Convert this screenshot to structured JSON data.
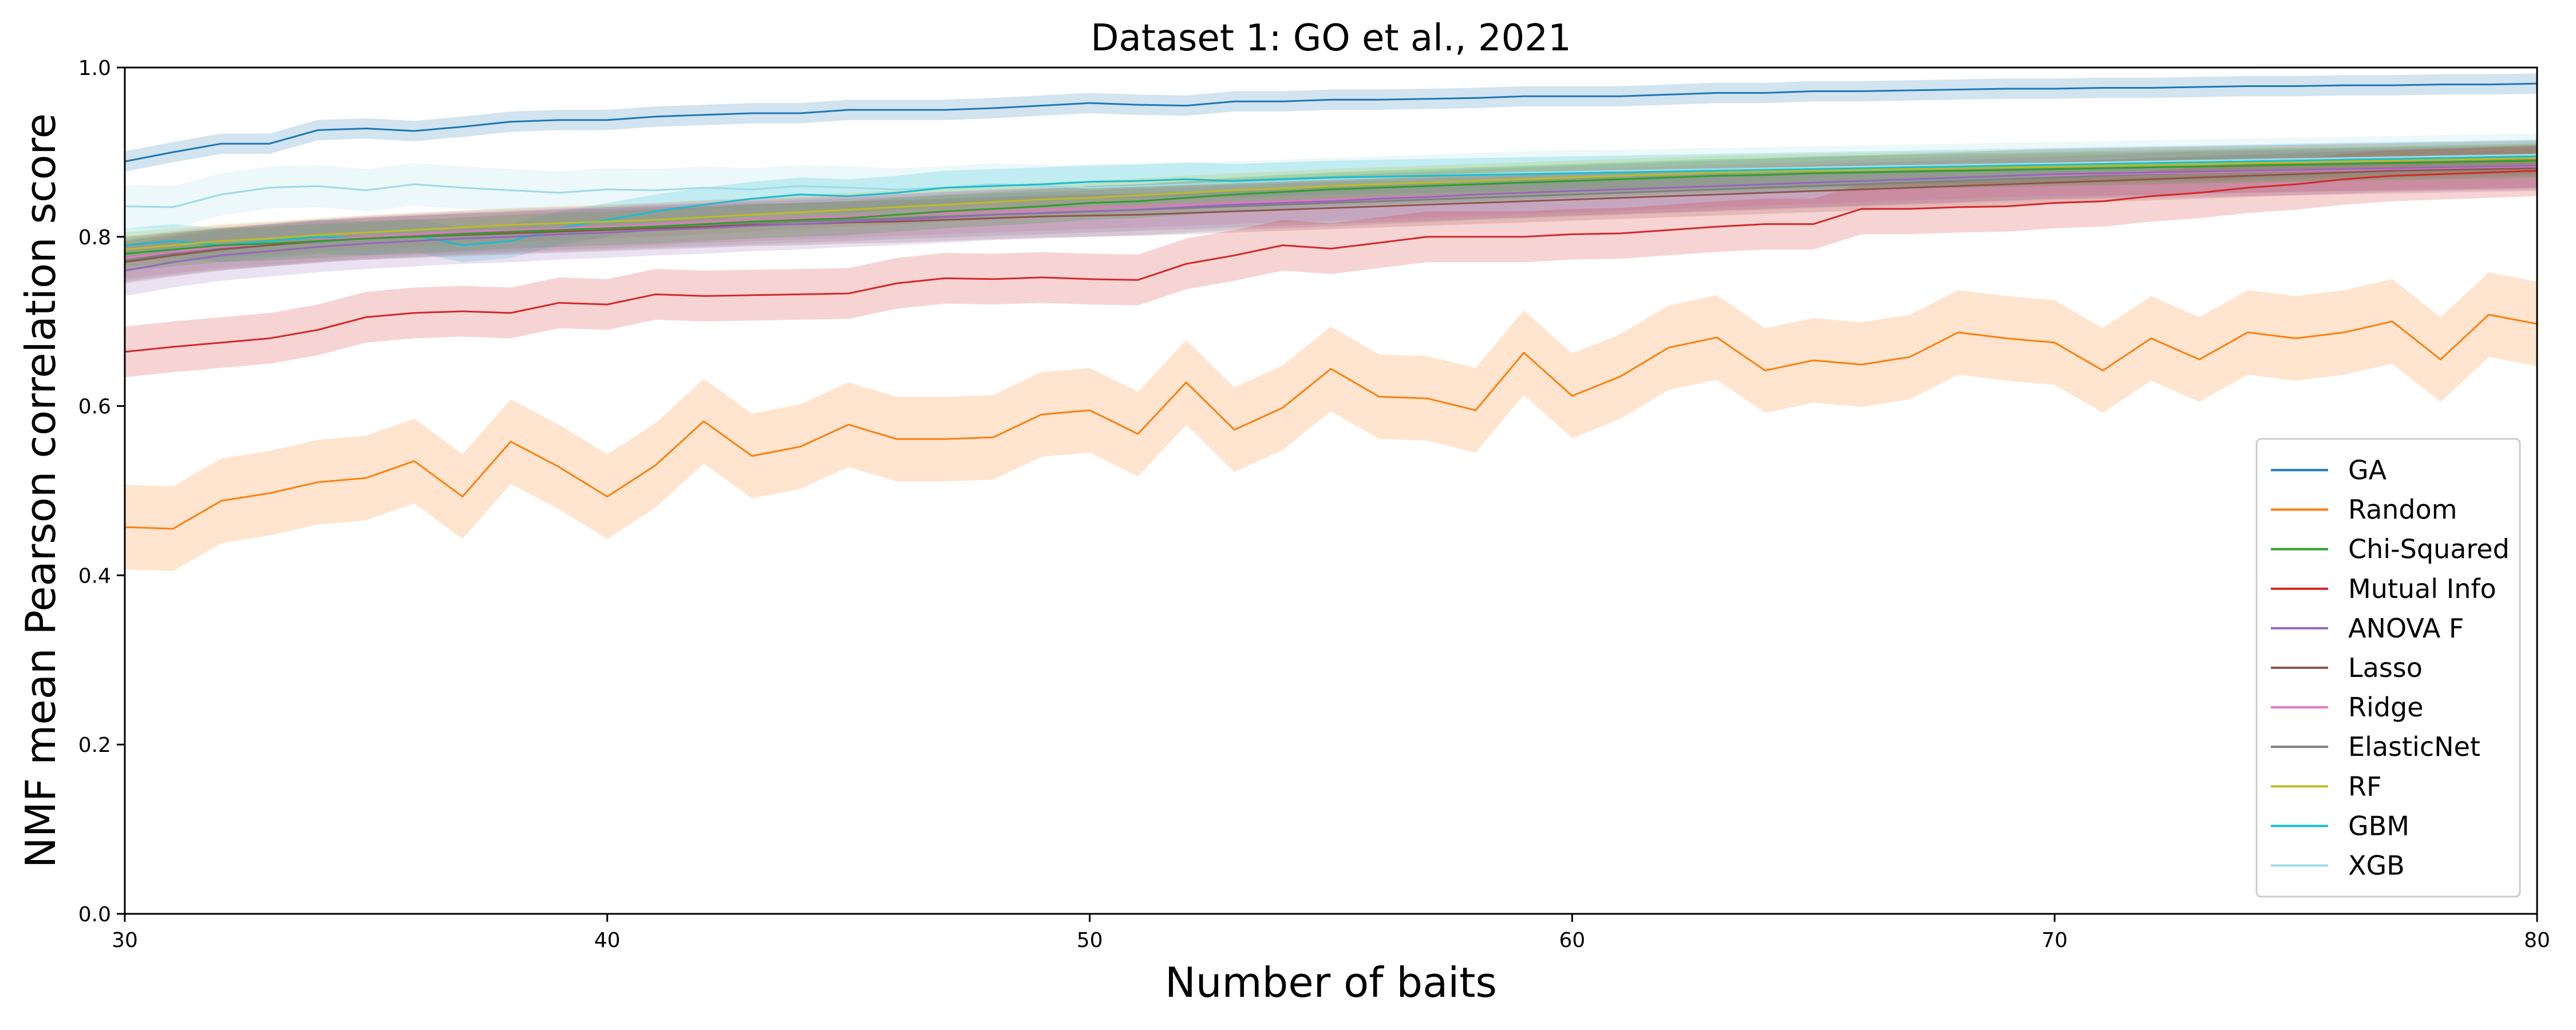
{
  "chart_data": {
    "type": "line",
    "title": "Dataset 1: GO et al., 2021",
    "xlabel": "Number of baits",
    "ylabel": "NMF mean Pearson correlation score",
    "xlim": [
      30,
      80
    ],
    "ylim": [
      0.0,
      1.0
    ],
    "x_ticks": [
      30,
      40,
      50,
      60,
      70,
      80
    ],
    "y_ticks": [
      0.0,
      0.2,
      0.4,
      0.6,
      0.8,
      1.0
    ],
    "x_tick_labels": [
      "30",
      "40",
      "50",
      "60",
      "70",
      "80"
    ],
    "y_tick_labels": [
      "0.0",
      "0.2",
      "0.4",
      "0.6",
      "0.8",
      "1.0"
    ],
    "grid": false,
    "legend_position": "lower right",
    "x": [
      30,
      31,
      32,
      33,
      34,
      35,
      36,
      37,
      38,
      39,
      40,
      41,
      42,
      43,
      44,
      45,
      46,
      47,
      48,
      49,
      50,
      51,
      52,
      53,
      54,
      55,
      56,
      57,
      58,
      59,
      60,
      61,
      62,
      63,
      64,
      65,
      66,
      67,
      68,
      69,
      70,
      71,
      72,
      73,
      74,
      75,
      76,
      77,
      78,
      79,
      80
    ],
    "series": [
      {
        "name": "GA",
        "color": "#1f77b4",
        "values": [
          0.889,
          0.9,
          0.91,
          0.91,
          0.926,
          0.928,
          0.925,
          0.93,
          0.936,
          0.938,
          0.938,
          0.942,
          0.944,
          0.946,
          0.946,
          0.95,
          0.95,
          0.95,
          0.952,
          0.955,
          0.958,
          0.956,
          0.955,
          0.96,
          0.96,
          0.962,
          0.962,
          0.963,
          0.964,
          0.966,
          0.966,
          0.966,
          0.968,
          0.97,
          0.97,
          0.972,
          0.972,
          0.973,
          0.974,
          0.975,
          0.975,
          0.976,
          0.976,
          0.977,
          0.978,
          0.978,
          0.979,
          0.979,
          0.98,
          0.98,
          0.981
        ],
        "band": 0.012
      },
      {
        "name": "Random",
        "color": "#ff7f0e",
        "values": [
          0.457,
          0.455,
          0.488,
          0.497,
          0.51,
          0.515,
          0.535,
          0.493,
          0.558,
          0.528,
          0.493,
          0.53,
          0.582,
          0.541,
          0.552,
          0.578,
          0.561,
          0.561,
          0.563,
          0.59,
          0.595,
          0.567,
          0.628,
          0.572,
          0.598,
          0.644,
          0.611,
          0.609,
          0.595,
          0.663,
          0.612,
          0.635,
          0.669,
          0.681,
          0.642,
          0.654,
          0.649,
          0.658,
          0.687,
          0.68,
          0.675,
          0.642,
          0.68,
          0.655,
          0.687,
          0.68,
          0.687,
          0.7,
          0.655,
          0.708,
          0.697
        ],
        "band": 0.05
      },
      {
        "name": "Chi-Squared",
        "color": "#2ca02c",
        "values": [
          0.78,
          0.785,
          0.79,
          0.792,
          0.795,
          0.798,
          0.8,
          0.803,
          0.806,
          0.808,
          0.81,
          0.812,
          0.815,
          0.818,
          0.82,
          0.822,
          0.826,
          0.83,
          0.833,
          0.836,
          0.84,
          0.842,
          0.846,
          0.85,
          0.853,
          0.856,
          0.858,
          0.86,
          0.862,
          0.864,
          0.866,
          0.868,
          0.87,
          0.872,
          0.873,
          0.875,
          0.876,
          0.877,
          0.878,
          0.879,
          0.88,
          0.881,
          0.882,
          0.883,
          0.884,
          0.885,
          0.886,
          0.887,
          0.888,
          0.889,
          0.89
        ],
        "band": 0.02
      },
      {
        "name": "Mutual Info",
        "color": "#d62728",
        "values": [
          0.664,
          0.67,
          0.675,
          0.68,
          0.69,
          0.705,
          0.71,
          0.712,
          0.71,
          0.722,
          0.72,
          0.732,
          0.73,
          0.731,
          0.732,
          0.733,
          0.745,
          0.751,
          0.75,
          0.752,
          0.75,
          0.749,
          0.768,
          0.778,
          0.79,
          0.786,
          0.793,
          0.8,
          0.8,
          0.8,
          0.803,
          0.804,
          0.808,
          0.812,
          0.815,
          0.815,
          0.833,
          0.833,
          0.835,
          0.836,
          0.84,
          0.842,
          0.848,
          0.852,
          0.858,
          0.862,
          0.868,
          0.872,
          0.874,
          0.876,
          0.878
        ],
        "band": 0.03
      },
      {
        "name": "ANOVA F",
        "color": "#9467bd",
        "values": [
          0.76,
          0.77,
          0.778,
          0.783,
          0.788,
          0.792,
          0.795,
          0.798,
          0.8,
          0.803,
          0.805,
          0.808,
          0.81,
          0.813,
          0.815,
          0.818,
          0.82,
          0.823,
          0.826,
          0.828,
          0.83,
          0.832,
          0.835,
          0.838,
          0.84,
          0.842,
          0.845,
          0.847,
          0.85,
          0.852,
          0.854,
          0.856,
          0.858,
          0.86,
          0.862,
          0.864,
          0.866,
          0.868,
          0.87,
          0.872,
          0.874,
          0.875,
          0.876,
          0.877,
          0.878,
          0.879,
          0.88,
          0.881,
          0.882,
          0.883,
          0.884
        ],
        "band": 0.03
      },
      {
        "name": "Lasso",
        "color": "#8c564b",
        "values": [
          0.77,
          0.778,
          0.785,
          0.79,
          0.795,
          0.798,
          0.8,
          0.802,
          0.804,
          0.806,
          0.808,
          0.81,
          0.812,
          0.814,
          0.815,
          0.817,
          0.818,
          0.82,
          0.822,
          0.824,
          0.825,
          0.826,
          0.828,
          0.83,
          0.832,
          0.834,
          0.836,
          0.838,
          0.84,
          0.842,
          0.844,
          0.846,
          0.848,
          0.85,
          0.852,
          0.854,
          0.856,
          0.858,
          0.86,
          0.862,
          0.864,
          0.866,
          0.868,
          0.87,
          0.872,
          0.874,
          0.876,
          0.878,
          0.879,
          0.88,
          0.881
        ],
        "band": 0.025
      },
      {
        "name": "Ridge",
        "color": "#e377c2",
        "values": [
          0.775,
          0.782,
          0.788,
          0.792,
          0.796,
          0.8,
          0.803,
          0.806,
          0.808,
          0.81,
          0.812,
          0.815,
          0.818,
          0.82,
          0.822,
          0.824,
          0.826,
          0.828,
          0.83,
          0.832,
          0.834,
          0.836,
          0.838,
          0.84,
          0.842,
          0.844,
          0.846,
          0.848,
          0.85,
          0.852,
          0.854,
          0.856,
          0.858,
          0.86,
          0.862,
          0.864,
          0.866,
          0.868,
          0.87,
          0.872,
          0.873,
          0.874,
          0.875,
          0.876,
          0.877,
          0.878,
          0.879,
          0.88,
          0.881,
          0.882,
          0.883
        ],
        "band": 0.025
      },
      {
        "name": "ElasticNet",
        "color": "#7f7f7f",
        "values": [
          0.772,
          0.78,
          0.786,
          0.79,
          0.794,
          0.798,
          0.801,
          0.804,
          0.806,
          0.808,
          0.81,
          0.812,
          0.814,
          0.816,
          0.818,
          0.82,
          0.822,
          0.824,
          0.826,
          0.828,
          0.83,
          0.832,
          0.834,
          0.836,
          0.838,
          0.84,
          0.842,
          0.844,
          0.846,
          0.848,
          0.85,
          0.852,
          0.854,
          0.856,
          0.858,
          0.86,
          0.862,
          0.864,
          0.866,
          0.868,
          0.87,
          0.872,
          0.874,
          0.876,
          0.877,
          0.878,
          0.879,
          0.88,
          0.881,
          0.882,
          0.883
        ],
        "band": 0.025
      },
      {
        "name": "RF",
        "color": "#bcbd22",
        "values": [
          0.785,
          0.79,
          0.795,
          0.798,
          0.802,
          0.805,
          0.808,
          0.811,
          0.814,
          0.816,
          0.818,
          0.82,
          0.823,
          0.826,
          0.829,
          0.832,
          0.835,
          0.838,
          0.841,
          0.844,
          0.846,
          0.849,
          0.852,
          0.855,
          0.857,
          0.86,
          0.862,
          0.864,
          0.866,
          0.868,
          0.87,
          0.872,
          0.874,
          0.876,
          0.877,
          0.878,
          0.879,
          0.88,
          0.881,
          0.882,
          0.883,
          0.884,
          0.885,
          0.886,
          0.887,
          0.888,
          0.889,
          0.89,
          0.891,
          0.892,
          0.893
        ],
        "band": 0.02
      },
      {
        "name": "GBM",
        "color": "#17becf",
        "values": [
          0.79,
          0.795,
          0.79,
          0.795,
          0.8,
          0.798,
          0.802,
          0.79,
          0.795,
          0.81,
          0.82,
          0.83,
          0.838,
          0.845,
          0.85,
          0.848,
          0.852,
          0.858,
          0.86,
          0.862,
          0.865,
          0.866,
          0.868,
          0.866,
          0.868,
          0.87,
          0.871,
          0.872,
          0.873,
          0.874,
          0.875,
          0.876,
          0.877,
          0.878,
          0.879,
          0.88,
          0.881,
          0.882,
          0.883,
          0.884,
          0.885,
          0.886,
          0.887,
          0.888,
          0.889,
          0.89,
          0.891,
          0.892,
          0.893,
          0.894,
          0.895
        ],
        "band": 0.02
      },
      {
        "name": "XGB",
        "color": "#9edae5",
        "values": [
          0.836,
          0.835,
          0.85,
          0.858,
          0.86,
          0.855,
          0.862,
          0.858,
          0.855,
          0.852,
          0.856,
          0.855,
          0.858,
          0.856,
          0.86,
          0.858,
          0.856,
          0.858,
          0.862,
          0.86,
          0.858,
          0.86,
          0.862,
          0.864,
          0.866,
          0.868,
          0.87,
          0.872,
          0.874,
          0.876,
          0.877,
          0.878,
          0.879,
          0.88,
          0.881,
          0.882,
          0.883,
          0.884,
          0.885,
          0.886,
          0.887,
          0.888,
          0.889,
          0.89,
          0.891,
          0.892,
          0.893,
          0.894,
          0.895,
          0.896,
          0.897
        ],
        "band": 0.025
      }
    ]
  }
}
